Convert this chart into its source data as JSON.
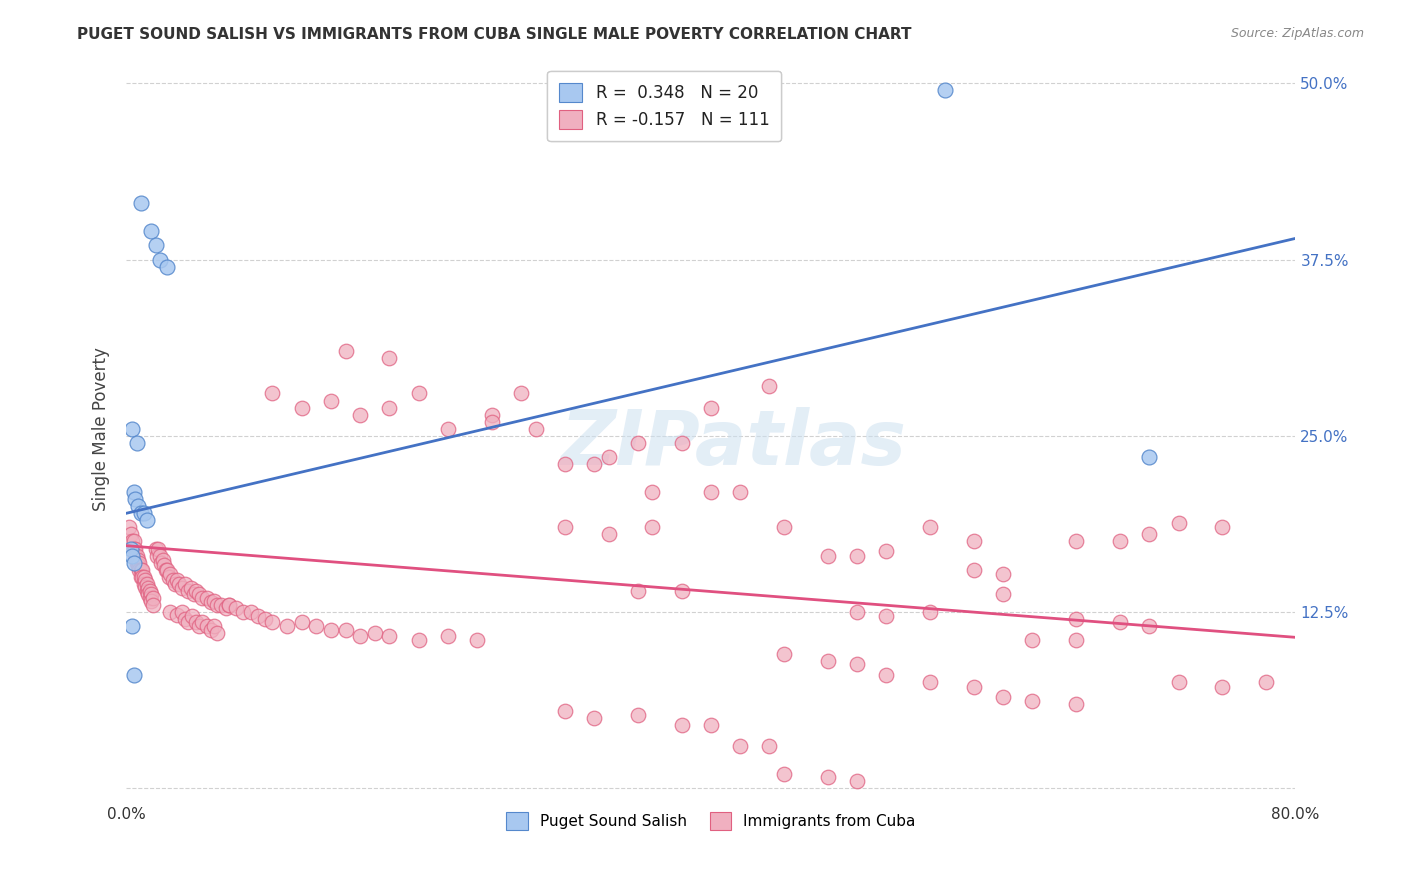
{
  "title": "PUGET SOUND SALISH VS IMMIGRANTS FROM CUBA SINGLE MALE POVERTY CORRELATION CHART",
  "source": "Source: ZipAtlas.com",
  "ylabel": "Single Male Poverty",
  "xlim": [
    0.0,
    0.8
  ],
  "ylim": [
    -0.01,
    0.52
  ],
  "blue_scatter": [
    [
      0.01,
      0.415
    ],
    [
      0.017,
      0.395
    ],
    [
      0.02,
      0.385
    ],
    [
      0.023,
      0.375
    ],
    [
      0.028,
      0.37
    ],
    [
      0.004,
      0.255
    ],
    [
      0.007,
      0.245
    ],
    [
      0.005,
      0.21
    ],
    [
      0.006,
      0.205
    ],
    [
      0.008,
      0.2
    ],
    [
      0.01,
      0.195
    ],
    [
      0.012,
      0.195
    ],
    [
      0.014,
      0.19
    ],
    [
      0.003,
      0.17
    ],
    [
      0.004,
      0.165
    ],
    [
      0.005,
      0.16
    ],
    [
      0.004,
      0.115
    ],
    [
      0.005,
      0.08
    ],
    [
      0.56,
      0.495
    ],
    [
      0.7,
      0.235
    ]
  ],
  "pink_scatter": [
    [
      0.002,
      0.185
    ],
    [
      0.003,
      0.18
    ],
    [
      0.004,
      0.175
    ],
    [
      0.005,
      0.175
    ],
    [
      0.005,
      0.17
    ],
    [
      0.006,
      0.17
    ],
    [
      0.006,
      0.165
    ],
    [
      0.007,
      0.165
    ],
    [
      0.007,
      0.16
    ],
    [
      0.008,
      0.162
    ],
    [
      0.008,
      0.158
    ],
    [
      0.009,
      0.16
    ],
    [
      0.009,
      0.155
    ],
    [
      0.01,
      0.155
    ],
    [
      0.01,
      0.15
    ],
    [
      0.011,
      0.155
    ],
    [
      0.011,
      0.15
    ],
    [
      0.012,
      0.15
    ],
    [
      0.012,
      0.145
    ],
    [
      0.013,
      0.148
    ],
    [
      0.013,
      0.143
    ],
    [
      0.014,
      0.145
    ],
    [
      0.014,
      0.14
    ],
    [
      0.015,
      0.142
    ],
    [
      0.015,
      0.138
    ],
    [
      0.016,
      0.14
    ],
    [
      0.016,
      0.135
    ],
    [
      0.017,
      0.138
    ],
    [
      0.017,
      0.133
    ],
    [
      0.018,
      0.135
    ],
    [
      0.018,
      0.13
    ],
    [
      0.02,
      0.17
    ],
    [
      0.021,
      0.165
    ],
    [
      0.022,
      0.17
    ],
    [
      0.023,
      0.165
    ],
    [
      0.024,
      0.16
    ],
    [
      0.025,
      0.162
    ],
    [
      0.026,
      0.158
    ],
    [
      0.027,
      0.155
    ],
    [
      0.028,
      0.155
    ],
    [
      0.029,
      0.15
    ],
    [
      0.03,
      0.152
    ],
    [
      0.032,
      0.148
    ],
    [
      0.033,
      0.145
    ],
    [
      0.035,
      0.148
    ],
    [
      0.036,
      0.145
    ],
    [
      0.038,
      0.142
    ],
    [
      0.04,
      0.145
    ],
    [
      0.042,
      0.14
    ],
    [
      0.044,
      0.142
    ],
    [
      0.046,
      0.138
    ],
    [
      0.048,
      0.14
    ],
    [
      0.05,
      0.138
    ],
    [
      0.052,
      0.135
    ],
    [
      0.055,
      0.135
    ],
    [
      0.058,
      0.132
    ],
    [
      0.06,
      0.133
    ],
    [
      0.062,
      0.13
    ],
    [
      0.065,
      0.13
    ],
    [
      0.068,
      0.128
    ],
    [
      0.07,
      0.13
    ],
    [
      0.03,
      0.125
    ],
    [
      0.035,
      0.123
    ],
    [
      0.038,
      0.125
    ],
    [
      0.04,
      0.12
    ],
    [
      0.042,
      0.118
    ],
    [
      0.045,
      0.122
    ],
    [
      0.048,
      0.118
    ],
    [
      0.05,
      0.115
    ],
    [
      0.052,
      0.118
    ],
    [
      0.055,
      0.115
    ],
    [
      0.058,
      0.112
    ],
    [
      0.06,
      0.115
    ],
    [
      0.062,
      0.11
    ],
    [
      0.07,
      0.13
    ],
    [
      0.075,
      0.128
    ],
    [
      0.08,
      0.125
    ],
    [
      0.085,
      0.125
    ],
    [
      0.09,
      0.122
    ],
    [
      0.095,
      0.12
    ],
    [
      0.1,
      0.118
    ],
    [
      0.11,
      0.115
    ],
    [
      0.12,
      0.118
    ],
    [
      0.13,
      0.115
    ],
    [
      0.14,
      0.112
    ],
    [
      0.15,
      0.112
    ],
    [
      0.16,
      0.108
    ],
    [
      0.17,
      0.11
    ],
    [
      0.18,
      0.108
    ],
    [
      0.2,
      0.105
    ],
    [
      0.22,
      0.108
    ],
    [
      0.24,
      0.105
    ],
    [
      0.35,
      0.14
    ],
    [
      0.38,
      0.14
    ],
    [
      0.1,
      0.28
    ],
    [
      0.12,
      0.27
    ],
    [
      0.14,
      0.275
    ],
    [
      0.16,
      0.265
    ],
    [
      0.18,
      0.27
    ],
    [
      0.2,
      0.28
    ],
    [
      0.25,
      0.265
    ],
    [
      0.27,
      0.28
    ],
    [
      0.15,
      0.31
    ],
    [
      0.18,
      0.305
    ],
    [
      0.22,
      0.255
    ],
    [
      0.25,
      0.26
    ],
    [
      0.28,
      0.255
    ],
    [
      0.3,
      0.23
    ],
    [
      0.32,
      0.23
    ],
    [
      0.33,
      0.235
    ],
    [
      0.35,
      0.245
    ],
    [
      0.38,
      0.245
    ],
    [
      0.4,
      0.27
    ],
    [
      0.44,
      0.285
    ],
    [
      0.36,
      0.21
    ],
    [
      0.4,
      0.21
    ],
    [
      0.42,
      0.21
    ],
    [
      0.3,
      0.185
    ],
    [
      0.33,
      0.18
    ],
    [
      0.36,
      0.185
    ],
    [
      0.45,
      0.185
    ],
    [
      0.48,
      0.165
    ],
    [
      0.5,
      0.165
    ],
    [
      0.52,
      0.168
    ],
    [
      0.55,
      0.185
    ],
    [
      0.58,
      0.175
    ],
    [
      0.58,
      0.155
    ],
    [
      0.6,
      0.152
    ],
    [
      0.5,
      0.125
    ],
    [
      0.52,
      0.122
    ],
    [
      0.55,
      0.125
    ],
    [
      0.6,
      0.138
    ],
    [
      0.62,
      0.105
    ],
    [
      0.65,
      0.105
    ],
    [
      0.65,
      0.175
    ],
    [
      0.68,
      0.175
    ],
    [
      0.7,
      0.18
    ],
    [
      0.72,
      0.188
    ],
    [
      0.75,
      0.185
    ],
    [
      0.65,
      0.12
    ],
    [
      0.68,
      0.118
    ],
    [
      0.7,
      0.115
    ],
    [
      0.72,
      0.075
    ],
    [
      0.75,
      0.072
    ],
    [
      0.78,
      0.075
    ],
    [
      0.45,
      0.095
    ],
    [
      0.48,
      0.09
    ],
    [
      0.5,
      0.088
    ],
    [
      0.52,
      0.08
    ],
    [
      0.55,
      0.075
    ],
    [
      0.58,
      0.072
    ],
    [
      0.6,
      0.065
    ],
    [
      0.62,
      0.062
    ],
    [
      0.65,
      0.06
    ],
    [
      0.3,
      0.055
    ],
    [
      0.32,
      0.05
    ],
    [
      0.35,
      0.052
    ],
    [
      0.38,
      0.045
    ],
    [
      0.4,
      0.045
    ],
    [
      0.42,
      0.03
    ],
    [
      0.44,
      0.03
    ],
    [
      0.45,
      0.01
    ],
    [
      0.48,
      0.008
    ],
    [
      0.5,
      0.005
    ]
  ],
  "blue_line_x": [
    0.0,
    0.8
  ],
  "blue_line_y": [
    0.195,
    0.39
  ],
  "pink_line_x": [
    0.0,
    0.8
  ],
  "pink_line_y": [
    0.172,
    0.107
  ],
  "blue_color": "#a8c8f0",
  "pink_color": "#f0b0c0",
  "blue_edge_color": "#5588cc",
  "pink_edge_color": "#e06080",
  "blue_line_color": "#4472c4",
  "pink_line_color": "#e05080",
  "label_blue": "Puget Sound Salish",
  "label_pink": "Immigrants from Cuba",
  "background_color": "#ffffff",
  "grid_color": "#cccccc",
  "watermark": "ZIPatlas"
}
